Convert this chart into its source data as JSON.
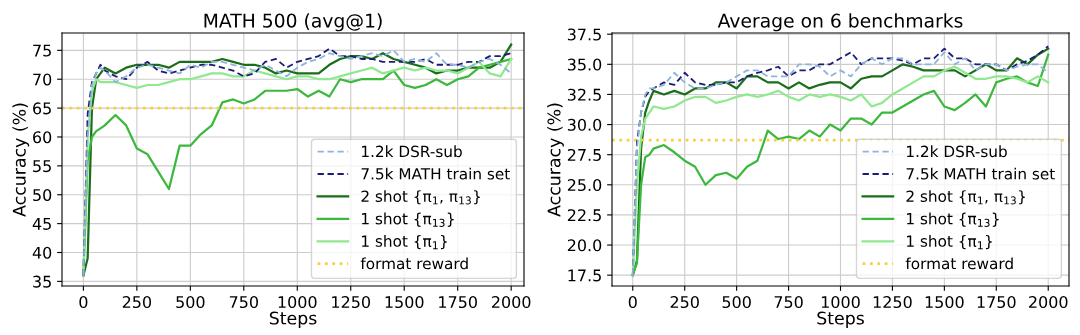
{
  "chart_data": [
    {
      "type": "line",
      "title": "MATH 500 (avg@1)",
      "xlabel": "Steps",
      "ylabel": "Accuracy (%)",
      "x": [
        0,
        20,
        40,
        60,
        80,
        100,
        150,
        200,
        250,
        300,
        350,
        400,
        450,
        500,
        550,
        600,
        650,
        700,
        750,
        800,
        850,
        900,
        950,
        1000,
        1050,
        1100,
        1150,
        1200,
        1250,
        1300,
        1350,
        1400,
        1450,
        1500,
        1550,
        1600,
        1650,
        1700,
        1750,
        1800,
        1850,
        1900,
        1950,
        2000
      ],
      "xlim": [
        -100,
        2060
      ],
      "xticks": [
        0,
        250,
        500,
        750,
        1000,
        1250,
        1500,
        1750,
        2000
      ],
      "ylim": [
        34.2,
        78.0
      ],
      "yticks": [
        35,
        40,
        45,
        50,
        55,
        60,
        65,
        70,
        75
      ],
      "grid": true,
      "legend": "bottom right",
      "series": [
        {
          "name": "1.2k DSR-sub",
          "color": "#8fb4d9",
          "line_style": "dashed",
          "values": [
            36,
            60,
            69,
            71,
            72,
            71.5,
            69.5,
            70.5,
            72,
            72.5,
            72,
            71.5,
            71,
            72.5,
            72,
            73,
            73,
            72.5,
            72,
            71.5,
            72.5,
            71.5,
            70.5,
            72,
            73,
            73.5,
            74.5,
            74,
            73.5,
            74,
            74.5,
            74,
            75,
            73,
            73.5,
            73,
            74.5,
            72.5,
            72.5,
            72,
            73,
            73.5,
            72.5,
            71
          ]
        },
        {
          "name": "7.5k MATH train set",
          "color": "#1c1c78",
          "line_style": "dashed",
          "values": [
            36,
            64,
            69.5,
            71,
            72.5,
            71.5,
            70.5,
            70,
            72,
            73,
            71.5,
            71,
            71.5,
            72,
            72.5,
            72.5,
            72,
            71.5,
            70.5,
            71,
            73,
            73.5,
            72,
            73,
            73.5,
            74,
            75.3,
            74,
            74,
            73.5,
            73.5,
            73,
            73,
            73,
            73,
            73.5,
            72.5,
            72.5,
            72.5,
            73,
            73,
            74,
            74,
            74.5
          ]
        },
        {
          "name": "2 shot {π$_{1}$, π$_{13}$}",
          "color": "#1a6e1a",
          "line_style": "solid",
          "values": [
            36,
            39,
            65,
            70,
            71,
            72,
            71,
            72,
            72.5,
            72.5,
            72.5,
            72,
            73,
            73,
            73,
            73,
            73.5,
            73,
            72.5,
            72.5,
            72,
            71,
            71.5,
            71,
            71,
            71,
            72.5,
            73.5,
            74,
            74,
            73.5,
            74.5,
            73.5,
            73,
            72.5,
            72,
            71,
            71.5,
            71.5,
            72,
            72,
            72,
            73,
            76
          ]
        },
        {
          "name": "1 shot {π$_{13}$}",
          "color": "#3cb83c",
          "line_style": "solid",
          "values": [
            36,
            56,
            60,
            61,
            61.5,
            62,
            63.8,
            62,
            58,
            57,
            54,
            51,
            58.5,
            58.5,
            60.5,
            62,
            66,
            66.5,
            65.8,
            66.5,
            68,
            68,
            68,
            68.3,
            67,
            68,
            67,
            70,
            69.5,
            70,
            70,
            70,
            71.5,
            69,
            68.5,
            69,
            70,
            69,
            70,
            70.5,
            72,
            72.5,
            73,
            73.5
          ]
        },
        {
          "name": "1 shot {π$_{1}$}",
          "color": "#90e890",
          "line_style": "solid",
          "values": [
            36,
            60,
            68,
            70,
            69.5,
            69.5,
            69.5,
            69,
            68.5,
            69,
            69,
            69.5,
            70,
            70,
            70.5,
            71,
            71,
            70.5,
            70.5,
            71.5,
            71,
            70.5,
            70,
            70.5,
            70.5,
            70,
            70,
            70.5,
            71,
            71.5,
            72,
            71,
            71.5,
            72,
            71.5,
            72,
            71.5,
            71.5,
            71,
            72,
            73,
            71,
            70.5,
            73.5
          ]
        }
      ],
      "ref_lines": [
        {
          "axis": "y",
          "value": 65,
          "label": "format reward",
          "color": "#f5d142",
          "line_style": "dotted"
        }
      ]
    },
    {
      "type": "line",
      "title": "Average on 6 benchmarks",
      "xlabel": "Steps",
      "ylabel": "Accuracy (%)",
      "x": [
        0,
        20,
        40,
        60,
        80,
        100,
        150,
        200,
        250,
        300,
        350,
        400,
        450,
        500,
        550,
        600,
        650,
        700,
        750,
        800,
        850,
        900,
        950,
        1000,
        1050,
        1100,
        1150,
        1200,
        1250,
        1300,
        1350,
        1400,
        1450,
        1500,
        1550,
        1600,
        1650,
        1700,
        1750,
        1800,
        1850,
        1900,
        1950,
        2000
      ],
      "xlim": [
        -100,
        2100
      ],
      "xticks": [
        0,
        250,
        500,
        750,
        1000,
        1250,
        1500,
        1750,
        2000
      ],
      "ylim": [
        16.6,
        37.6
      ],
      "yticks": [
        17.5,
        {
          "value": 20,
          "label": "20.0"
        },
        22.5,
        {
          "value": 25,
          "label": "25.0"
        },
        27.5,
        {
          "value": 30,
          "label": "30.0"
        },
        32.5,
        {
          "value": 35,
          "label": "35.0"
        },
        37.5
      ],
      "grid": true,
      "legend": "bottom right",
      "series": [
        {
          "name": "1.2k DSR-sub",
          "color": "#8fb4d9",
          "line_style": "dashed",
          "values": [
            17.5,
            28,
            31,
            32.5,
            33,
            33,
            33.3,
            34.3,
            33.5,
            33,
            33,
            33.3,
            33.5,
            34,
            34.5,
            34.5,
            34,
            34,
            34,
            35,
            35,
            34.8,
            34,
            34.5,
            34,
            35,
            35.5,
            35,
            35.5,
            35.5,
            35,
            35,
            35,
            36,
            35,
            35.5,
            34.5,
            35,
            35,
            34.5,
            34.8,
            35,
            35,
            34.3
          ]
        },
        {
          "name": "7.5k MATH train set",
          "color": "#1c1c78",
          "line_style": "dashed",
          "values": [
            17.5,
            28.5,
            31,
            32.3,
            32.8,
            33,
            33.5,
            33.3,
            34.3,
            33.5,
            33.3,
            33.3,
            33.5,
            33.5,
            34,
            34.3,
            34.5,
            34.8,
            34,
            34.5,
            34.5,
            35,
            35,
            35.5,
            36,
            35,
            35.5,
            35.5,
            35.5,
            35.3,
            35,
            35.5,
            35.5,
            36.3,
            35.5,
            35.5,
            35,
            35,
            35,
            34.5,
            35,
            35.3,
            35.8,
            36.5
          ]
        },
        {
          "name": "2 shot {π$_{1}$, π$_{13}$}",
          "color": "#1a6e1a",
          "line_style": "solid",
          "values": [
            17.5,
            18.7,
            28,
            31,
            32,
            32.8,
            32.5,
            32.8,
            32.5,
            33,
            33,
            33.5,
            33.5,
            33,
            34,
            34,
            33.5,
            33.5,
            33,
            33.5,
            33,
            33.3,
            33.5,
            33.5,
            33,
            33.8,
            34,
            34,
            34.5,
            35,
            34.8,
            34.5,
            34.5,
            34.5,
            34.5,
            34,
            34.5,
            35,
            34.5,
            34.5,
            35.5,
            35,
            35.8,
            36.3
          ]
        },
        {
          "name": "1 shot {π$_{13}$}",
          "color": "#3cb83c",
          "line_style": "solid",
          "values": [
            17.5,
            18.5,
            25,
            27.3,
            27.5,
            28,
            28.3,
            27.7,
            27,
            26.5,
            25,
            25.8,
            26,
            25.5,
            26.5,
            27,
            29.5,
            28.8,
            29,
            28.8,
            29.5,
            29,
            30,
            29.5,
            30.5,
            30.5,
            30,
            31,
            31,
            31.5,
            32,
            32.5,
            32.8,
            31.5,
            31.2,
            31.8,
            32.5,
            31.5,
            33.5,
            33.8,
            34,
            33.5,
            33.2,
            35.8
          ]
        },
        {
          "name": "1 shot {π$_{1}$}",
          "color": "#90e890",
          "line_style": "solid",
          "values": [
            17.5,
            25,
            29,
            30.5,
            31,
            31.5,
            31.3,
            31.5,
            32,
            32.3,
            32.3,
            31.8,
            32,
            32.3,
            32.5,
            32.3,
            32.5,
            32.8,
            32.3,
            32,
            32.5,
            32.3,
            32.5,
            32.3,
            32,
            32.5,
            31.5,
            31.8,
            32.5,
            33,
            33.5,
            34,
            34,
            34.5,
            34.8,
            34.3,
            33.8,
            33.8,
            34,
            34,
            33.8,
            33.5,
            34,
            33.5
          ]
        }
      ],
      "ref_lines": [
        {
          "axis": "y",
          "value": 28.7,
          "label": "format reward",
          "color": "#f5d142",
          "line_style": "dotted"
        }
      ]
    }
  ]
}
